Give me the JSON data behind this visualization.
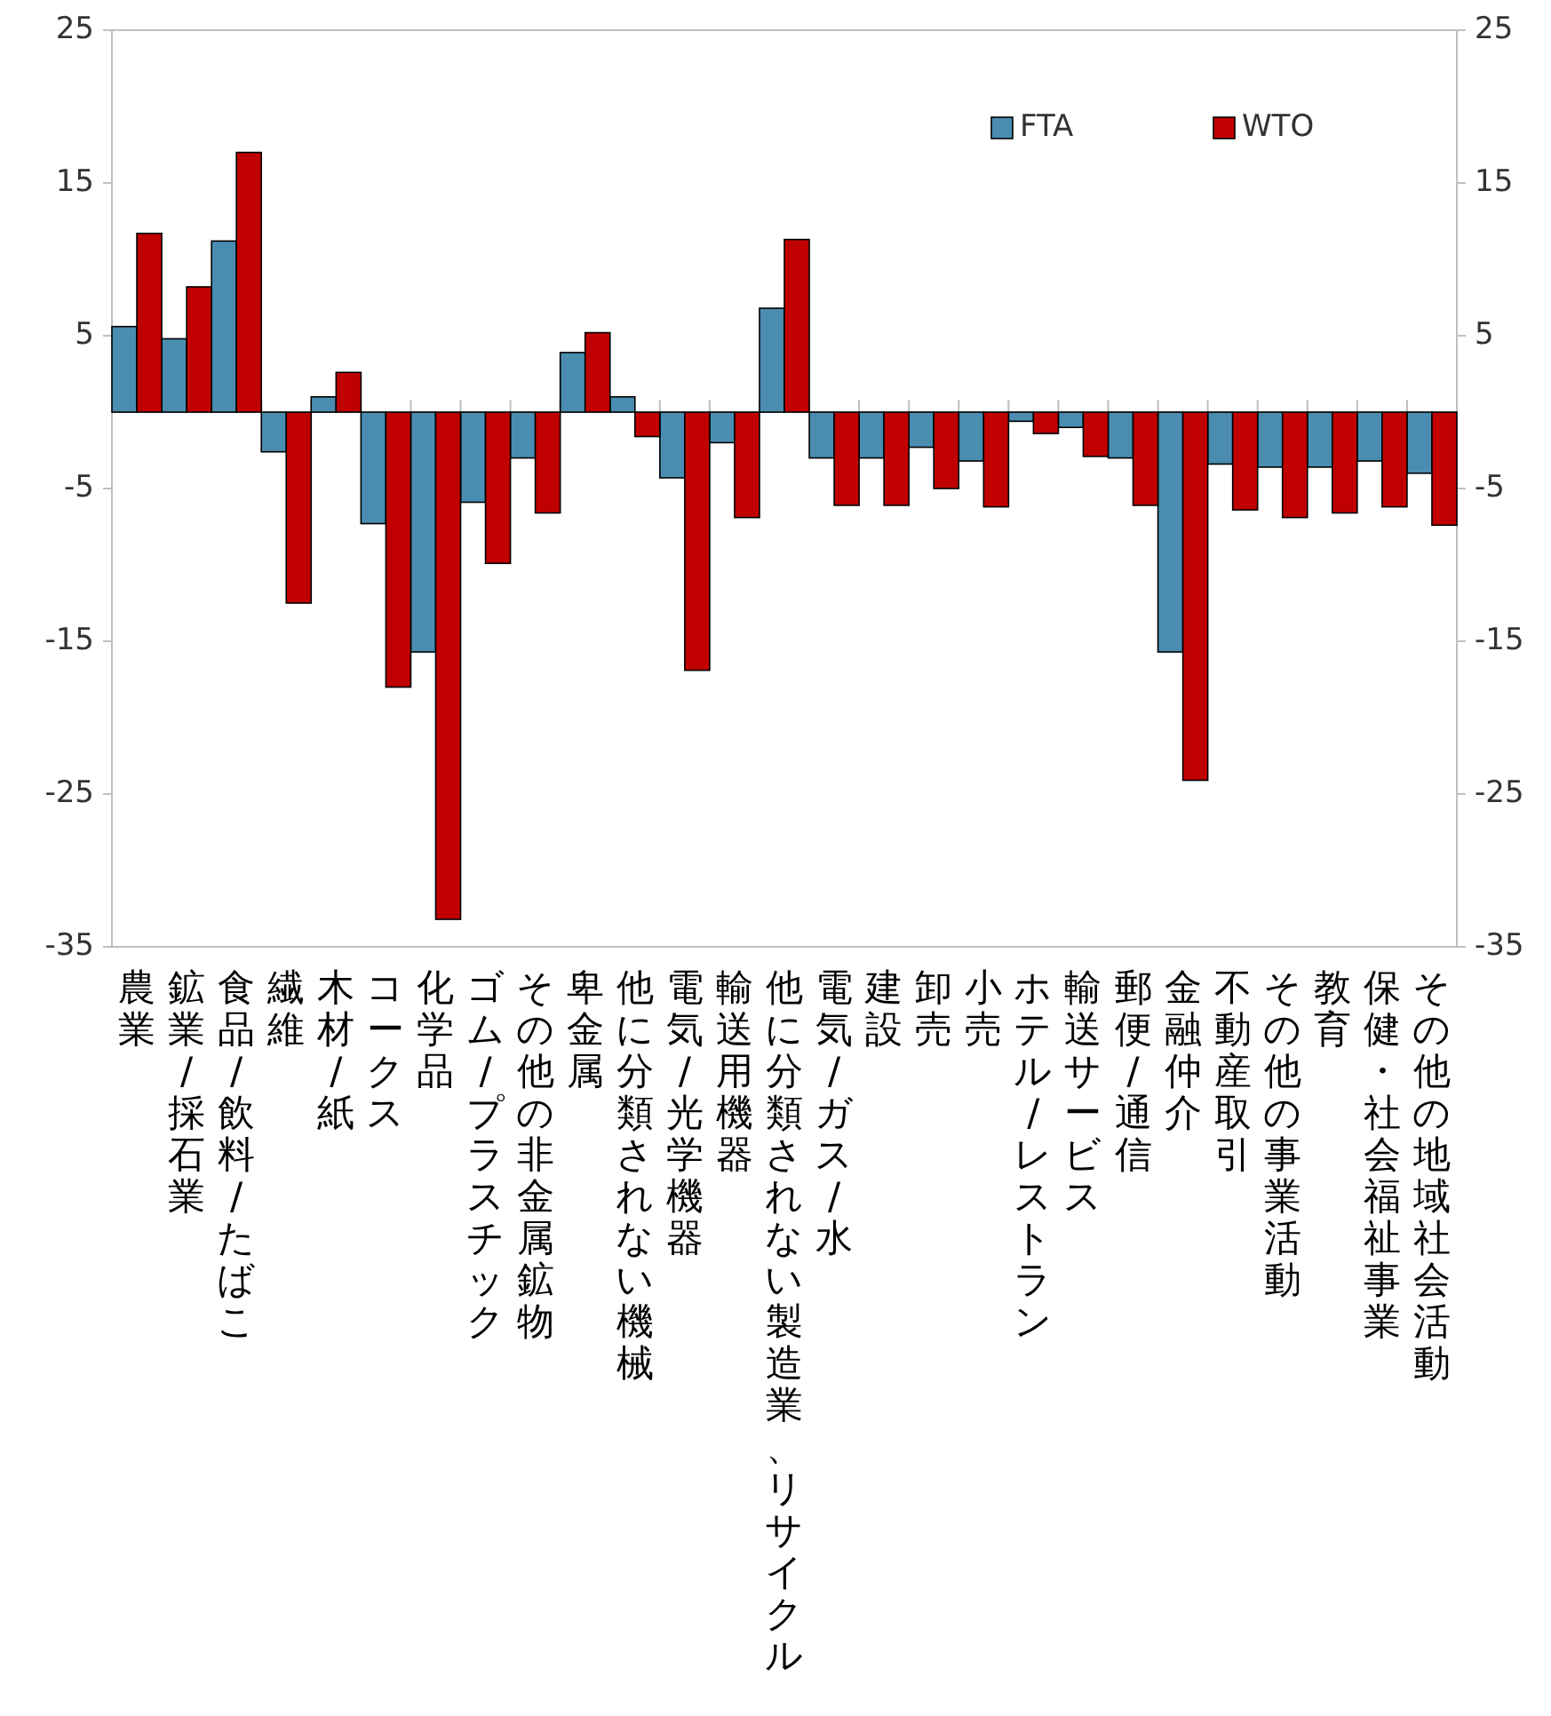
{
  "chart_data": {
    "type": "bar",
    "categories": [
      "農業",
      "鉱業/採石業",
      "食品/飲料/たばこ",
      "繊維",
      "木材/紙",
      "コークス",
      "化学品",
      "ゴム/プラスチック",
      "その他の非金属鉱物",
      "卑金属",
      "他に分類されない機械",
      "電気/光学機器",
      "輸送用機器",
      "他に分類されない製造業、リサイクル",
      "電気/ガス/水",
      "建設",
      "卸売",
      "小売",
      "ホテル/レストラン",
      "輸送サービス",
      "郵便/通信",
      "金融仲介",
      "不動産取引",
      "その他の事業活動",
      "教育",
      "保健・社会福祉事業",
      "その他の地域社会活動"
    ],
    "series": [
      {
        "name": "FTA",
        "color": "#4a8db0",
        "values": [
          5.6,
          4.8,
          11.2,
          -2.6,
          1.0,
          -7.3,
          -15.7,
          -5.9,
          -3.0,
          3.9,
          1.0,
          -4.3,
          -2.0,
          6.8,
          -3.0,
          -3.0,
          -2.3,
          -3.2,
          -0.6,
          -1.0,
          -3.0,
          -15.7,
          -3.4,
          -3.6,
          -3.6,
          -3.2,
          -4.0
        ]
      },
      {
        "name": "WTO",
        "color": "#c00000",
        "values": [
          11.7,
          8.2,
          17.0,
          -12.5,
          2.6,
          -18.0,
          -33.2,
          -9.9,
          -6.6,
          5.2,
          -1.6,
          -16.9,
          -6.9,
          11.3,
          -6.1,
          -6.1,
          -5.0,
          -6.2,
          -1.4,
          -2.9,
          -6.1,
          -24.1,
          -6.4,
          -6.9,
          -6.6,
          -6.2,
          -7.4
        ]
      }
    ],
    "ylim": [
      -35,
      25
    ],
    "yticks": [
      25,
      15,
      5,
      -5,
      -15,
      -25,
      -35
    ],
    "y2lim": [
      -35,
      25
    ],
    "y2ticks": [
      25,
      15,
      5,
      -5,
      -15,
      -25,
      -35
    ],
    "legend": "top right"
  }
}
